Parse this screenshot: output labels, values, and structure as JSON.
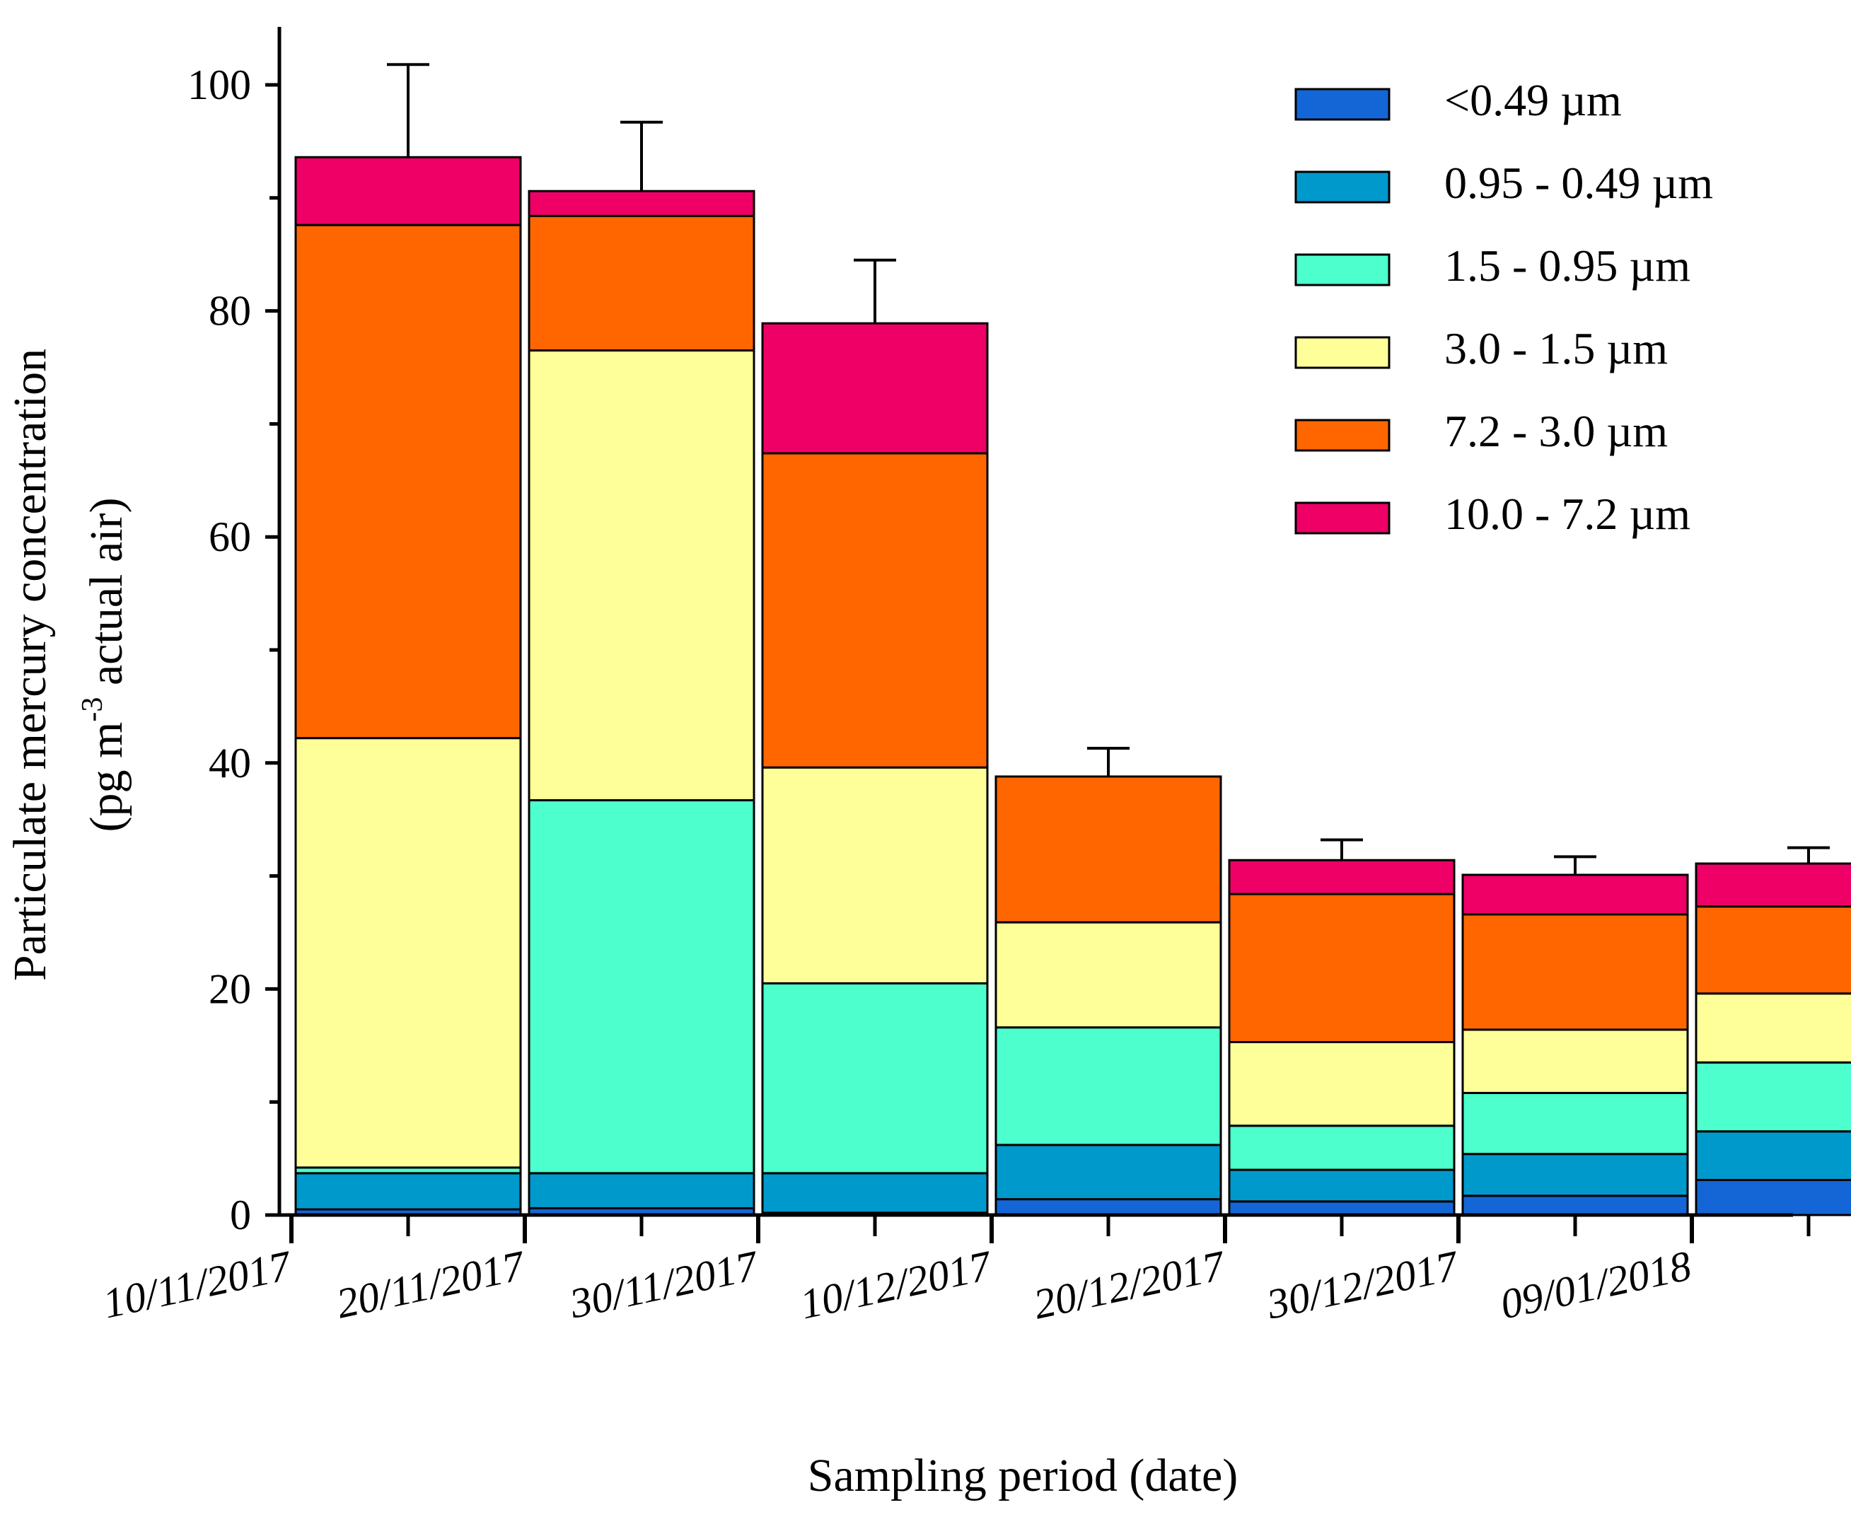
{
  "chart_data": {
    "type": "bar",
    "stacked": true,
    "x_ticks": [
      "10/11/2017",
      "20/11/2017",
      "30/11/2017",
      "10/12/2017",
      "20/12/2017",
      "30/12/2017",
      "09/01/2018"
    ],
    "periods": [
      "10/11/2017 - 20/11/2017",
      "20/11/2017 - 30/11/2017",
      "30/11/2017 - 10/12/2017",
      "10/12/2017 - 20/12/2017",
      "20/12/2017 - 30/12/2017",
      "30/12/2017 - 09/01/2018",
      "09/01/2018 -"
    ],
    "series": [
      {
        "name": "<0.49 µm",
        "color": "#1466D6",
        "values": [
          0.5,
          0.6,
          0.2,
          1.4,
          1.2,
          1.7,
          3.1
        ]
      },
      {
        "name": "0.95 - 0.49 µm",
        "color": "#0099CC",
        "values": [
          3.2,
          3.1,
          3.5,
          4.8,
          2.8,
          3.7,
          4.3
        ]
      },
      {
        "name": "1.5 - 0.95 µm",
        "color": "#4CFFCC",
        "values": [
          0.5,
          33.0,
          16.8,
          10.4,
          3.9,
          5.4,
          6.1
        ]
      },
      {
        "name": "3.0 - 1.5 µm",
        "color": "#FFFF99",
        "values": [
          38.0,
          39.8,
          19.1,
          9.3,
          7.4,
          5.6,
          6.1
        ]
      },
      {
        "name": "7.2 - 3.0 µm",
        "color": "#FF6600",
        "values": [
          45.4,
          11.9,
          27.8,
          12.9,
          13.1,
          10.2,
          7.7
        ]
      },
      {
        "name": "10.0 - 7.2 µm",
        "color": "#EE0066",
        "values": [
          6.0,
          2.2,
          11.5,
          0.0,
          3.0,
          3.5,
          3.8
        ]
      }
    ],
    "totals": [
      93.6,
      90.6,
      78.9,
      38.8,
      31.4,
      30.1,
      31.1
    ],
    "error_bars": [
      8.2,
      6.1,
      5.6,
      2.5,
      1.8,
      1.6,
      1.4
    ],
    "ylabel_line1": "Particulate mercury concentration",
    "ylabel_line2_pre": "(pg m",
    "ylabel_line2_sup": "-3",
    "ylabel_line2_post": " actual air)",
    "xlabel": "Sampling period (date)",
    "y_ticks": [
      "0",
      "20",
      "40",
      "60",
      "80",
      "100"
    ],
    "ylim": [
      0,
      105
    ],
    "grid": false,
    "legend_position": "top-right"
  }
}
